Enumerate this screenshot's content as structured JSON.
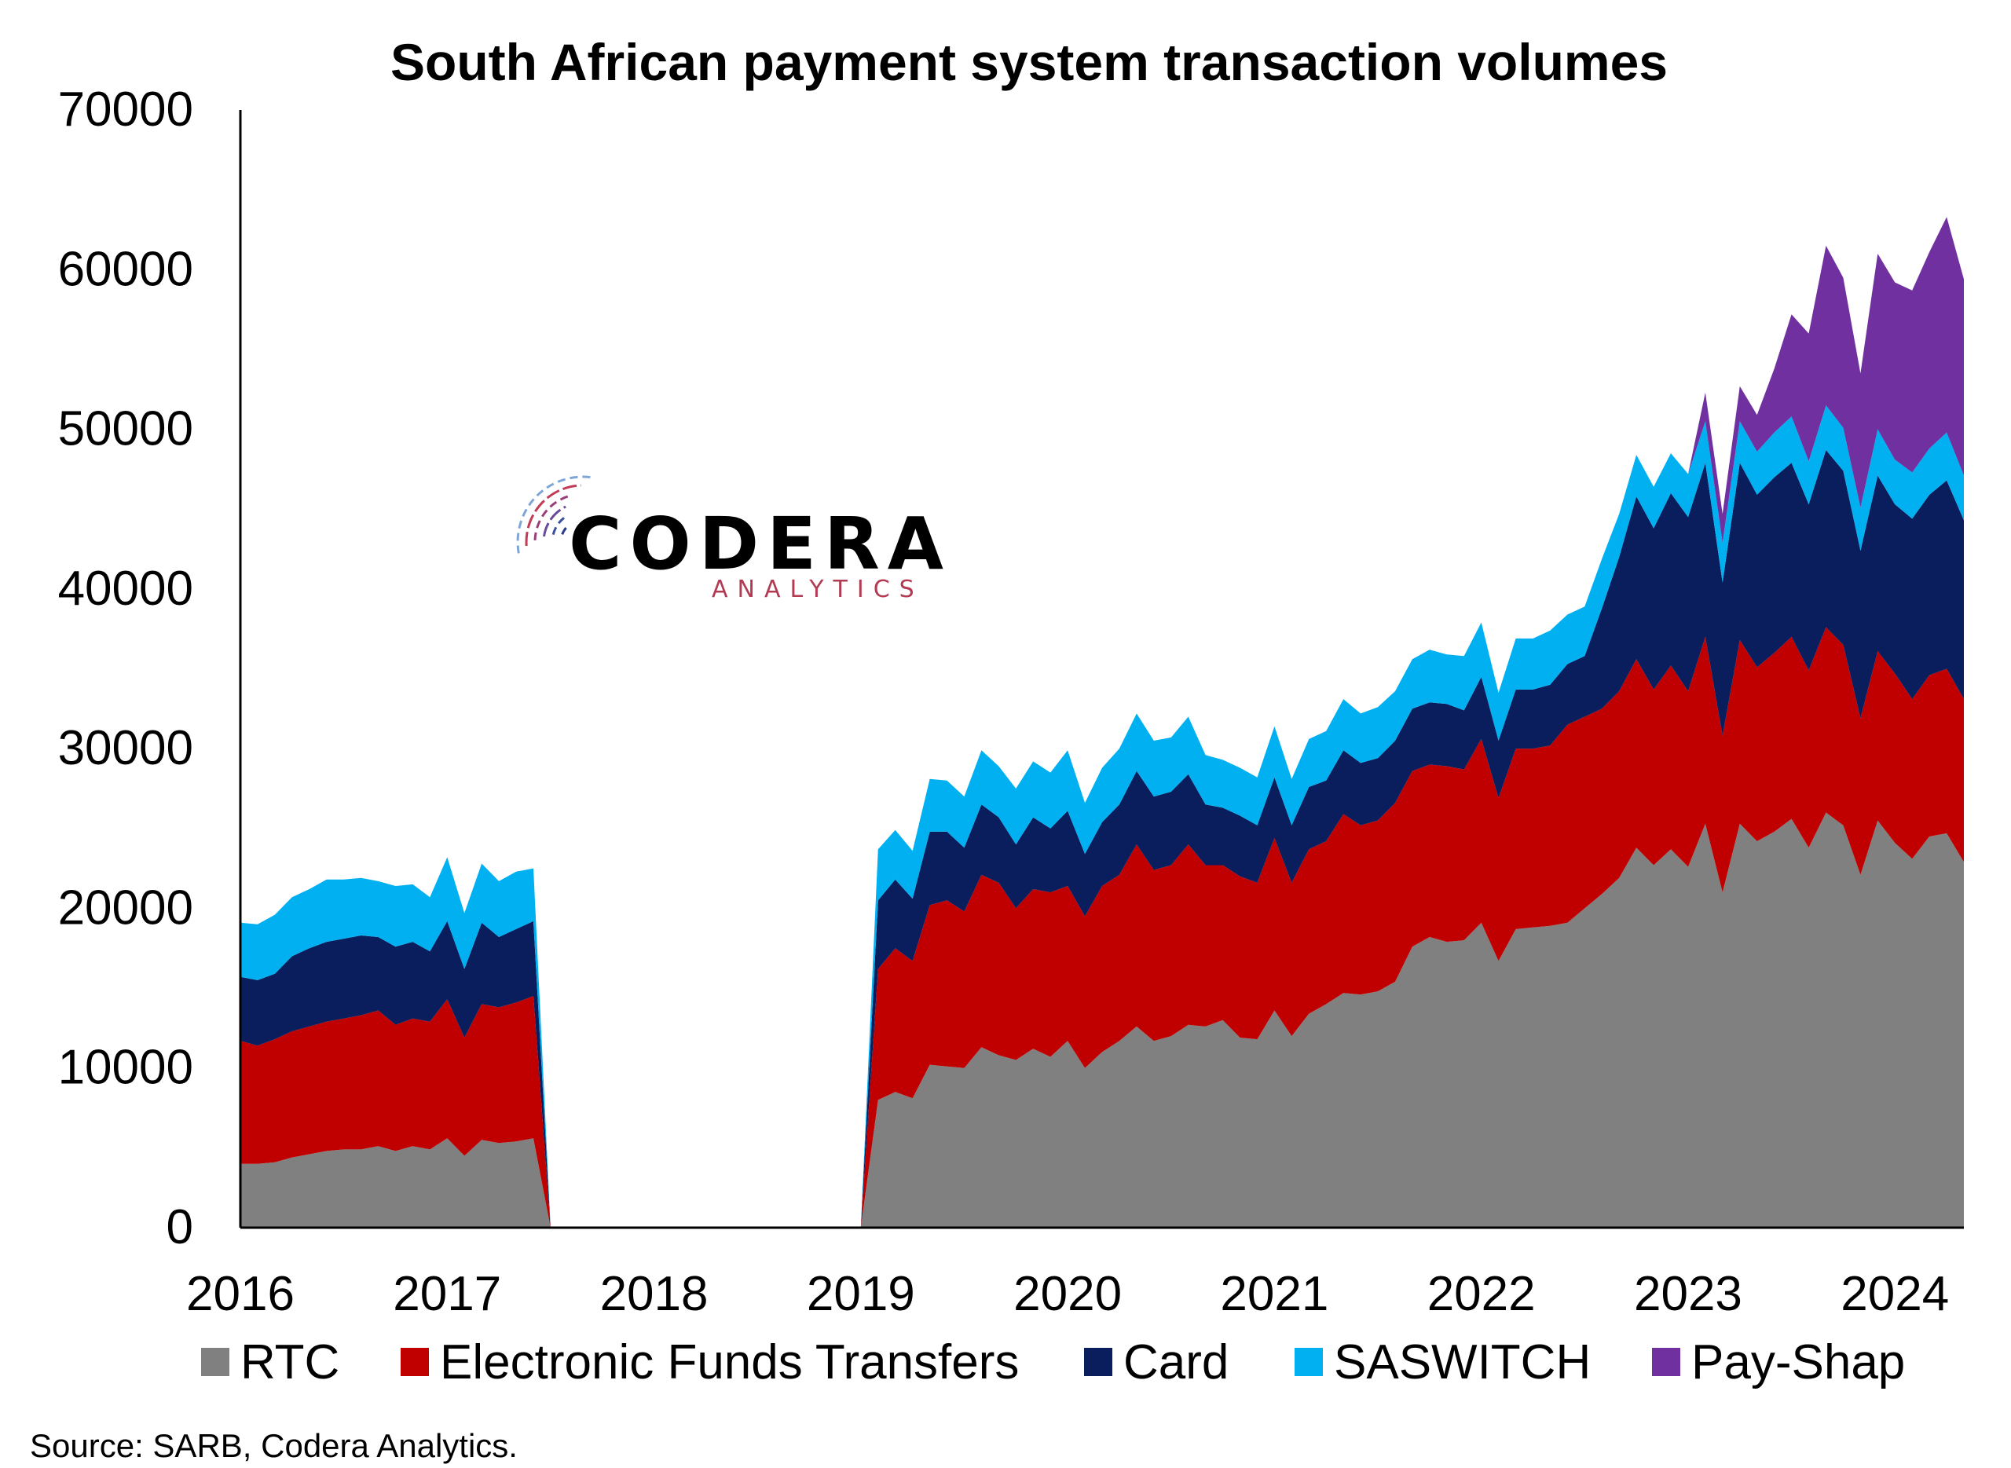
{
  "chart_data": {
    "type": "area",
    "stacked": true,
    "title": "South African payment system transaction volumes",
    "xlabel": "",
    "ylabel": "",
    "ylim": [
      0,
      70000
    ],
    "y_ticks": [
      0,
      10000,
      20000,
      30000,
      40000,
      50000,
      60000,
      70000
    ],
    "xlim": [
      "2016-01",
      "2024-05"
    ],
    "x_ticks": [
      "2016",
      "2017",
      "2018",
      "2019",
      "2020",
      "2021",
      "2022",
      "2023",
      "2024"
    ],
    "legend_position": "bottom",
    "grid": false,
    "x": [
      "2016-01",
      "2016-02",
      "2016-03",
      "2016-04",
      "2016-05",
      "2016-06",
      "2016-07",
      "2016-08",
      "2016-09",
      "2016-10",
      "2016-11",
      "2016-12",
      "2017-01",
      "2017-02",
      "2017-03",
      "2017-04",
      "2017-05",
      "2017-06",
      "2017-07",
      "2017-08",
      "2019-01",
      "2019-02",
      "2019-03",
      "2019-04",
      "2019-05",
      "2019-06",
      "2019-07",
      "2019-08",
      "2019-09",
      "2019-10",
      "2019-11",
      "2019-12",
      "2020-01",
      "2020-02",
      "2020-03",
      "2020-04",
      "2020-05",
      "2020-06",
      "2020-07",
      "2020-08",
      "2020-09",
      "2020-10",
      "2020-11",
      "2020-12",
      "2021-01",
      "2021-02",
      "2021-03",
      "2021-04",
      "2021-05",
      "2021-06",
      "2021-07",
      "2021-08",
      "2021-09",
      "2021-10",
      "2021-11",
      "2021-12",
      "2022-01",
      "2022-02",
      "2022-03",
      "2022-04",
      "2022-05",
      "2022-06",
      "2022-07",
      "2022-08",
      "2022-09",
      "2022-10",
      "2022-11",
      "2022-12",
      "2023-01",
      "2023-02",
      "2023-03",
      "2023-04",
      "2023-05",
      "2023-06",
      "2023-07",
      "2023-08",
      "2023-09",
      "2023-10",
      "2023-11",
      "2023-12",
      "2024-01",
      "2024-02",
      "2024-03",
      "2024-04",
      "2024-05"
    ],
    "series": [
      {
        "name": "RTC",
        "color": "#808080",
        "values": [
          4000,
          4000,
          4100,
          4400,
          4600,
          4800,
          4900,
          4900,
          5100,
          4800,
          5100,
          4900,
          5600,
          4500,
          5500,
          5300,
          5400,
          5600,
          0,
          0,
          0,
          8000,
          8500,
          8100,
          10200,
          10100,
          10000,
          11300,
          10800,
          10500,
          11200,
          10700,
          11700,
          10000,
          11000,
          11700,
          12600,
          11700,
          12000,
          12700,
          12600,
          13000,
          11900,
          11800,
          13600,
          12000,
          13400,
          14000,
          14700,
          14600,
          14800,
          15400,
          17600,
          18200,
          17900,
          18000,
          19100,
          16700,
          18700,
          18800,
          18900,
          19100,
          20000,
          20900,
          21900,
          23800,
          22700,
          23700,
          22600,
          25300,
          21000,
          25300,
          24200,
          24800,
          25600,
          23800,
          26000,
          25200,
          22100,
          25500,
          24100,
          23100,
          24500,
          24700,
          22900
        ]
      },
      {
        "name": "Electronic Funds Transfers",
        "color": "#C00000",
        "values": [
          7700,
          7400,
          7700,
          7900,
          8000,
          8100,
          8200,
          8400,
          8500,
          7900,
          8000,
          8000,
          8700,
          7400,
          8500,
          8500,
          8700,
          8900,
          0,
          0,
          0,
          8200,
          9000,
          8600,
          10000,
          10400,
          9800,
          10800,
          10800,
          9500,
          10000,
          10300,
          9700,
          9500,
          10400,
          10400,
          11400,
          10700,
          10700,
          11300,
          10100,
          9700,
          10100,
          9800,
          10800,
          9600,
          10300,
          10200,
          11200,
          10600,
          10700,
          11200,
          11000,
          10800,
          11000,
          10700,
          11500,
          10200,
          11300,
          11200,
          11300,
          12400,
          12000,
          11600,
          11700,
          11800,
          11000,
          11500,
          11000,
          11700,
          9800,
          11500,
          10900,
          11200,
          11400,
          11100,
          11600,
          11300,
          9800,
          10600,
          10600,
          10000,
          10100,
          10300,
          10200
        ]
      },
      {
        "name": "Card",
        "color": "#0A1E5E",
        "values": [
          4000,
          4100,
          4100,
          4700,
          4900,
          5000,
          5000,
          5000,
          4600,
          4900,
          4800,
          4400,
          4900,
          4300,
          5100,
          4400,
          4600,
          4700,
          0,
          0,
          0,
          4300,
          4300,
          3900,
          4600,
          4300,
          4000,
          4400,
          4100,
          4000,
          4500,
          4000,
          4700,
          3900,
          4000,
          4400,
          4600,
          4600,
          4600,
          4400,
          3800,
          3600,
          3800,
          3600,
          3800,
          3600,
          3900,
          3800,
          4000,
          3900,
          3900,
          3900,
          3900,
          3900,
          3900,
          3700,
          3900,
          3600,
          3700,
          3700,
          3800,
          3800,
          3800,
          6300,
          8400,
          10200,
          10100,
          10800,
          10900,
          10900,
          9600,
          11100,
          10800,
          11000,
          10900,
          10400,
          11100,
          10900,
          10500,
          11000,
          10600,
          11300,
          11300,
          11800,
          11200
        ]
      },
      {
        "name": "SASWITCH",
        "color": "#00B0F0",
        "values": [
          3400,
          3500,
          3700,
          3700,
          3700,
          3900,
          3700,
          3600,
          3500,
          3800,
          3600,
          3400,
          4000,
          3500,
          3700,
          3500,
          3600,
          3300,
          0,
          0,
          0,
          3200,
          3100,
          3000,
          3300,
          3200,
          3200,
          3400,
          3200,
          3500,
          3500,
          3500,
          3800,
          3200,
          3400,
          3500,
          3600,
          3500,
          3400,
          3600,
          3100,
          3000,
          3000,
          3000,
          3200,
          2900,
          3000,
          3100,
          3200,
          3100,
          3200,
          3100,
          3100,
          3300,
          3100,
          3400,
          3400,
          3000,
          3200,
          3200,
          3400,
          3100,
          3100,
          3100,
          2700,
          2600,
          2600,
          2500,
          2700,
          2600,
          2500,
          2600,
          2700,
          2800,
          2900,
          2700,
          2800,
          2700,
          2700,
          2900,
          2800,
          2900,
          2900,
          3000,
          2800
        ]
      },
      {
        "name": "Pay-Shap",
        "color": "#7030A0",
        "values": [
          0,
          0,
          0,
          0,
          0,
          0,
          0,
          0,
          0,
          0,
          0,
          0,
          0,
          0,
          0,
          0,
          0,
          0,
          0,
          0,
          0,
          0,
          0,
          0,
          0,
          0,
          0,
          0,
          0,
          0,
          0,
          0,
          0,
          0,
          0,
          0,
          0,
          0,
          0,
          0,
          0,
          0,
          0,
          0,
          0,
          0,
          0,
          0,
          0,
          0,
          0,
          0,
          0,
          0,
          0,
          0,
          0,
          0,
          0,
          0,
          0,
          0,
          0,
          0,
          0,
          0,
          0,
          0,
          0,
          1800,
          1800,
          2200,
          2300,
          4000,
          6400,
          8000,
          10000,
          9400,
          8400,
          11000,
          11100,
          11400,
          12300,
          13500,
          12300
        ]
      }
    ]
  },
  "logo": {
    "name": "CODERA",
    "subtitle": "ANALYTICS"
  },
  "source_note": "Source: SARB, Codera Analytics."
}
